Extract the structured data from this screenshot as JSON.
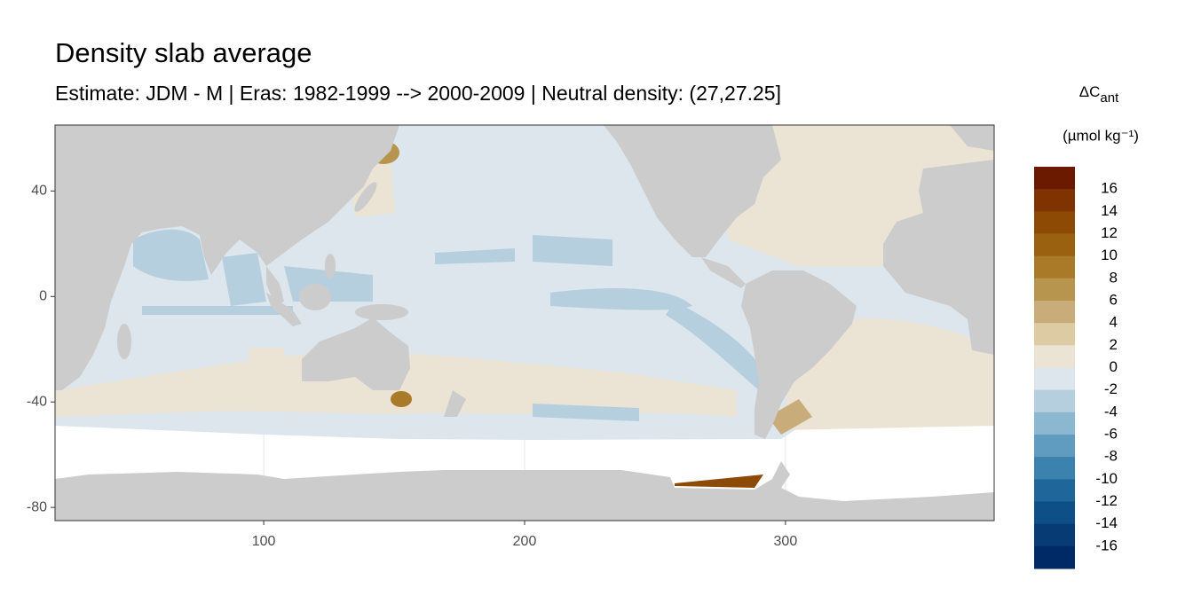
{
  "chart_data": {
    "type": "raster-map",
    "title": "Density slab average",
    "subtitle": "Estimate: JDM - M | Eras: 1982-1999 --> 2000-2009 | Neutral density: (27,27.25]",
    "xlim": [
      20,
      380
    ],
    "ylim": [
      -85,
      65
    ],
    "xticks": [
      100,
      200,
      300
    ],
    "yticks": [
      -80,
      -40,
      0,
      40
    ],
    "grid": true,
    "land_color": "#cccccc",
    "legend": {
      "title": "ΔC",
      "title_sub": "ant",
      "unit": "(µmol kg⁻¹)",
      "limits": [
        -18,
        18
      ],
      "ticks": [
        16,
        14,
        12,
        10,
        8,
        6,
        4,
        2,
        0,
        -2,
        -4,
        -6,
        -8,
        -10,
        -12,
        -14,
        -16
      ],
      "colors": [
        "#6b1a00",
        "#7f3300",
        "#8c4a05",
        "#9a6210",
        "#a97b28",
        "#b8954f",
        "#c8ad7a",
        "#dccba3",
        "#ebe3d4",
        "#dce6ec",
        "#b5cfdf",
        "#8bb8d0",
        "#5f9cbf",
        "#3b82ae",
        "#1f679a",
        "#0d4f86",
        "#063b74",
        "#002a66"
      ]
    }
  }
}
